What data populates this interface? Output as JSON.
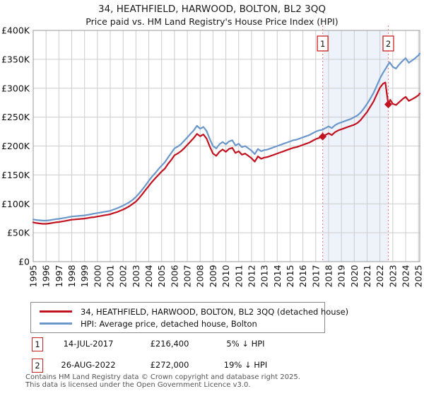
{
  "chart_data": {
    "type": "line",
    "title": "34, HEATHFIELD, HARWOOD, BOLTON, BL2 3QQ",
    "subtitle": "Price paid vs. HM Land Registry's House Price Index (HPI)",
    "xlabel": "",
    "ylabel": "",
    "grid": true,
    "legend_position": "below",
    "xlim": [
      1995,
      2025.1
    ],
    "ylim": [
      0,
      400
    ],
    "y_unit": "GBP thousands",
    "x_ticks": [
      1995,
      1996,
      1997,
      1998,
      1999,
      2000,
      2001,
      2002,
      2003,
      2004,
      2005,
      2006,
      2007,
      2008,
      2009,
      2010,
      2011,
      2012,
      2013,
      2014,
      2015,
      2016,
      2017,
      2018,
      2019,
      2020,
      2021,
      2022,
      2023,
      2024,
      2025
    ],
    "y_ticks": [
      {
        "value": 0,
        "label": "£0"
      },
      {
        "value": 50,
        "label": "£50K"
      },
      {
        "value": 100,
        "label": "£100K"
      },
      {
        "value": 150,
        "label": "£150K"
      },
      {
        "value": 200,
        "label": "£200K"
      },
      {
        "value": 250,
        "label": "£250K"
      },
      {
        "value": 300,
        "label": "£300K"
      },
      {
        "value": 350,
        "label": "£350K"
      },
      {
        "value": 400,
        "label": "£400K"
      }
    ],
    "colors": {
      "price_line": "#c3121f",
      "hpi_line": "#6b97cb",
      "dashed_marker_line": "#ee8585",
      "shade": "#edf2fb",
      "grid": "#cccccc",
      "plot_border": "#999999",
      "marker_box_border": "#cc2222"
    },
    "shaded_region": [
      2017.54,
      2022.65
    ],
    "markers": [
      {
        "label": "1",
        "x": 2017.54,
        "value": 216.4
      },
      {
        "label": "2",
        "x": 2022.65,
        "value": 272
      }
    ],
    "series": [
      {
        "name": "34, HEATHFIELD, HARWOOD, BOLTON, BL2 3QQ (detached house)",
        "color": "#c3121f",
        "points": [
          [
            1995,
            68
          ],
          [
            1995.25,
            66.8
          ],
          [
            1995.5,
            66
          ],
          [
            1995.75,
            65.5
          ],
          [
            1996,
            65.5
          ],
          [
            1996.25,
            66
          ],
          [
            1996.5,
            67
          ],
          [
            1996.75,
            68
          ],
          [
            1997,
            68.5
          ],
          [
            1997.25,
            69.5
          ],
          [
            1997.5,
            70.5
          ],
          [
            1997.75,
            71.5
          ],
          [
            1998,
            72.5
          ],
          [
            1998.25,
            73
          ],
          [
            1998.5,
            73.5
          ],
          [
            1998.75,
            74
          ],
          [
            1999,
            74.5
          ],
          [
            1999.25,
            75.5
          ],
          [
            1999.5,
            76.5
          ],
          [
            1999.75,
            77
          ],
          [
            2000,
            78
          ],
          [
            2000.25,
            79
          ],
          [
            2000.5,
            80
          ],
          [
            2000.75,
            81
          ],
          [
            2001,
            82
          ],
          [
            2001.25,
            84
          ],
          [
            2001.5,
            85.5
          ],
          [
            2001.75,
            88
          ],
          [
            2002,
            90
          ],
          [
            2002.25,
            93
          ],
          [
            2002.5,
            96
          ],
          [
            2002.75,
            100
          ],
          [
            2003,
            104
          ],
          [
            2003.25,
            110
          ],
          [
            2003.5,
            117
          ],
          [
            2003.75,
            124
          ],
          [
            2004,
            131
          ],
          [
            2004.25,
            138
          ],
          [
            2004.5,
            144
          ],
          [
            2004.75,
            150
          ],
          [
            2005,
            156
          ],
          [
            2005.25,
            161
          ],
          [
            2005.5,
            169
          ],
          [
            2005.75,
            176
          ],
          [
            2006,
            184
          ],
          [
            2006.25,
            187
          ],
          [
            2006.5,
            191
          ],
          [
            2006.75,
            196
          ],
          [
            2007,
            202
          ],
          [
            2007.25,
            208
          ],
          [
            2007.5,
            214
          ],
          [
            2007.75,
            221
          ],
          [
            2008,
            217
          ],
          [
            2008.25,
            220
          ],
          [
            2008.5,
            213
          ],
          [
            2008.75,
            199
          ],
          [
            2009,
            187
          ],
          [
            2009.25,
            183
          ],
          [
            2009.5,
            190
          ],
          [
            2009.75,
            194
          ],
          [
            2010,
            190
          ],
          [
            2010.25,
            195
          ],
          [
            2010.5,
            197
          ],
          [
            2010.75,
            188
          ],
          [
            2011,
            191
          ],
          [
            2011.25,
            185
          ],
          [
            2011.5,
            187
          ],
          [
            2011.75,
            183
          ],
          [
            2012,
            179
          ],
          [
            2012.25,
            173
          ],
          [
            2012.5,
            182
          ],
          [
            2012.75,
            178
          ],
          [
            2013,
            180
          ],
          [
            2013.25,
            181
          ],
          [
            2013.5,
            183
          ],
          [
            2013.75,
            185
          ],
          [
            2014,
            187
          ],
          [
            2014.25,
            189
          ],
          [
            2014.5,
            191
          ],
          [
            2014.75,
            193
          ],
          [
            2015,
            195
          ],
          [
            2015.25,
            197
          ],
          [
            2015.5,
            198
          ],
          [
            2015.75,
            200
          ],
          [
            2016,
            202
          ],
          [
            2016.25,
            204
          ],
          [
            2016.5,
            206
          ],
          [
            2016.75,
            209
          ],
          [
            2017,
            212
          ],
          [
            2017.25,
            214
          ],
          [
            2017.54,
            216.4
          ],
          [
            2017.75,
            219
          ],
          [
            2018,
            222
          ],
          [
            2018.25,
            219
          ],
          [
            2018.5,
            224
          ],
          [
            2018.75,
            227
          ],
          [
            2019,
            229
          ],
          [
            2019.25,
            231
          ],
          [
            2019.5,
            233
          ],
          [
            2019.75,
            235
          ],
          [
            2020,
            237
          ],
          [
            2020.25,
            240
          ],
          [
            2020.5,
            245
          ],
          [
            2020.75,
            252
          ],
          [
            2021,
            259
          ],
          [
            2021.25,
            268
          ],
          [
            2021.5,
            277
          ],
          [
            2021.75,
            289
          ],
          [
            2022,
            301
          ],
          [
            2022.25,
            308
          ],
          [
            2022.42,
            310
          ],
          [
            2022.65,
            272
          ],
          [
            2022.8,
            280
          ],
          [
            2023,
            273
          ],
          [
            2023.25,
            271
          ],
          [
            2023.5,
            276
          ],
          [
            2023.75,
            281
          ],
          [
            2024,
            285
          ],
          [
            2024.25,
            278
          ],
          [
            2024.5,
            281
          ],
          [
            2024.75,
            284
          ],
          [
            2025,
            288
          ],
          [
            2025.1,
            291
          ]
        ]
      },
      {
        "name": "HPI: Average price, detached house, Bolton",
        "color": "#6b97cb",
        "points": [
          [
            1995,
            73
          ],
          [
            1995.25,
            72
          ],
          [
            1995.5,
            71.5
          ],
          [
            1995.75,
            71
          ],
          [
            1996,
            71
          ],
          [
            1996.25,
            71.5
          ],
          [
            1996.5,
            72.5
          ],
          [
            1996.75,
            73.5
          ],
          [
            1997,
            74
          ],
          [
            1997.25,
            75
          ],
          [
            1997.5,
            76
          ],
          [
            1997.75,
            77
          ],
          [
            1998,
            78
          ],
          [
            1998.25,
            78.5
          ],
          [
            1998.5,
            79
          ],
          [
            1998.75,
            79.5
          ],
          [
            1999,
            80
          ],
          [
            1999.25,
            81
          ],
          [
            1999.5,
            82
          ],
          [
            1999.75,
            83
          ],
          [
            2000,
            84
          ],
          [
            2000.25,
            85
          ],
          [
            2000.5,
            86
          ],
          [
            2000.75,
            87
          ],
          [
            2001,
            88
          ],
          [
            2001.25,
            90
          ],
          [
            2001.5,
            92
          ],
          [
            2001.75,
            94.5
          ],
          [
            2002,
            97
          ],
          [
            2002.25,
            100
          ],
          [
            2002.5,
            103
          ],
          [
            2002.75,
            107
          ],
          [
            2003,
            112
          ],
          [
            2003.25,
            118
          ],
          [
            2003.5,
            125
          ],
          [
            2003.75,
            132
          ],
          [
            2004,
            140
          ],
          [
            2004.25,
            147
          ],
          [
            2004.5,
            153
          ],
          [
            2004.75,
            160
          ],
          [
            2005,
            166
          ],
          [
            2005.25,
            172
          ],
          [
            2005.5,
            180
          ],
          [
            2005.75,
            188
          ],
          [
            2006,
            196
          ],
          [
            2006.25,
            199
          ],
          [
            2006.5,
            203
          ],
          [
            2006.75,
            209
          ],
          [
            2007,
            215
          ],
          [
            2007.25,
            221
          ],
          [
            2007.5,
            227
          ],
          [
            2007.75,
            235
          ],
          [
            2008,
            230
          ],
          [
            2008.25,
            233
          ],
          [
            2008.5,
            226
          ],
          [
            2008.75,
            212
          ],
          [
            2009,
            200
          ],
          [
            2009.25,
            196
          ],
          [
            2009.5,
            203
          ],
          [
            2009.75,
            207
          ],
          [
            2010,
            203
          ],
          [
            2010.25,
            208
          ],
          [
            2010.5,
            210
          ],
          [
            2010.75,
            201
          ],
          [
            2011,
            204
          ],
          [
            2011.25,
            198
          ],
          [
            2011.5,
            200
          ],
          [
            2011.75,
            196
          ],
          [
            2012,
            192
          ],
          [
            2012.25,
            186
          ],
          [
            2012.5,
            195
          ],
          [
            2012.75,
            191
          ],
          [
            2013,
            193
          ],
          [
            2013.25,
            194
          ],
          [
            2013.5,
            196
          ],
          [
            2013.75,
            198
          ],
          [
            2014,
            200
          ],
          [
            2014.25,
            202
          ],
          [
            2014.5,
            204
          ],
          [
            2014.75,
            206
          ],
          [
            2015,
            208
          ],
          [
            2015.25,
            210
          ],
          [
            2015.5,
            211
          ],
          [
            2015.75,
            213
          ],
          [
            2016,
            215
          ],
          [
            2016.25,
            217
          ],
          [
            2016.5,
            219
          ],
          [
            2016.75,
            222
          ],
          [
            2017,
            225
          ],
          [
            2017.25,
            227
          ],
          [
            2017.5,
            228
          ],
          [
            2017.75,
            231
          ],
          [
            2018,
            234
          ],
          [
            2018.25,
            231
          ],
          [
            2018.5,
            236
          ],
          [
            2018.75,
            239
          ],
          [
            2019,
            241
          ],
          [
            2019.25,
            243
          ],
          [
            2019.5,
            245
          ],
          [
            2019.75,
            247
          ],
          [
            2020,
            250
          ],
          [
            2020.25,
            253
          ],
          [
            2020.5,
            258
          ],
          [
            2020.75,
            265
          ],
          [
            2021,
            273
          ],
          [
            2021.25,
            282
          ],
          [
            2021.5,
            292
          ],
          [
            2021.75,
            304
          ],
          [
            2022,
            317
          ],
          [
            2022.25,
            327
          ],
          [
            2022.5,
            336
          ],
          [
            2022.75,
            345
          ],
          [
            2023,
            337
          ],
          [
            2023.25,
            334
          ],
          [
            2023.5,
            341
          ],
          [
            2023.75,
            347
          ],
          [
            2024,
            352
          ],
          [
            2024.25,
            344
          ],
          [
            2024.5,
            348
          ],
          [
            2024.75,
            352
          ],
          [
            2025,
            357
          ],
          [
            2025.1,
            360
          ]
        ]
      }
    ]
  },
  "events": [
    {
      "num": "1",
      "date": "14-JUL-2017",
      "price": "£216,400",
      "delta": "5% ↓ HPI"
    },
    {
      "num": "2",
      "date": "26-AUG-2022",
      "price": "£272,000",
      "delta": "19% ↓ HPI"
    }
  ],
  "footer": {
    "line1": "Contains HM Land Registry data © Crown copyright and database right 2025.",
    "line2": "This data is licensed under the Open Government Licence v3.0."
  }
}
